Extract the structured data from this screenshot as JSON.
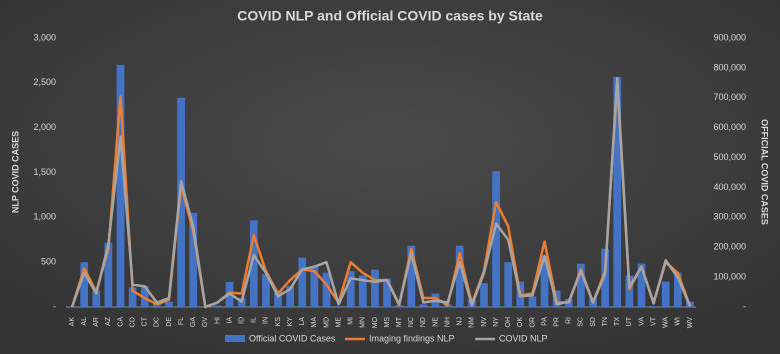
{
  "chart_data": {
    "type": "combo",
    "title": "COVID NLP and Official COVID cases by State",
    "y_label": "NLP COVID CASES",
    "y2_label": "OFFICIAL COVID CASES",
    "categories": [
      "AK",
      "AL",
      "AR",
      "AZ",
      "CA",
      "CO",
      "CT",
      "DC",
      "DE",
      "FL",
      "GA",
      "GV",
      "HI",
      "IA",
      "ID",
      "IL",
      "IN",
      "KS",
      "KY",
      "LA",
      "MA",
      "MD",
      "ME",
      "MI",
      "MN",
      "MO",
      "MS",
      "MT",
      "NC",
      "ND",
      "NE",
      "NH",
      "NJ",
      "NM",
      "NV",
      "NY",
      "OH",
      "OK",
      "OR",
      "PA",
      "PR",
      "RI",
      "SC",
      "SD",
      "TN",
      "TX",
      "UT",
      "VA",
      "VT",
      "WA",
      "WI",
      "WV"
    ],
    "series": [
      {
        "name": "Official COVID Cases",
        "type": "bar",
        "axis": "y2",
        "color": "#4472c4",
        "values": [
          2000,
          150000,
          55000,
          215000,
          810000,
          65000,
          70000,
          15000,
          18000,
          700000,
          315000,
          0,
          5000,
          84000,
          30000,
          290000,
          110000,
          55000,
          70000,
          165000,
          135000,
          115000,
          3000,
          120000,
          105000,
          125000,
          95000,
          6000,
          205000,
          9000,
          45000,
          9000,
          205000,
          24000,
          80000,
          455000,
          150000,
          85000,
          35000,
          170000,
          55000,
          27000,
          145000,
          30000,
          195000,
          770000,
          105000,
          145000,
          3000,
          85000,
          115000,
          18000
        ]
      },
      {
        "name": "Imaging findings NLP",
        "type": "line",
        "axis": "y",
        "color": "#ed7d31",
        "values": [
          0,
          430,
          170,
          650,
          2350,
          180,
          100,
          30,
          80,
          1350,
          850,
          0,
          50,
          160,
          150,
          800,
          400,
          150,
          300,
          420,
          400,
          250,
          50,
          500,
          380,
          300,
          300,
          20,
          650,
          100,
          100,
          20,
          600,
          40,
          400,
          1170,
          900,
          130,
          150,
          730,
          50,
          50,
          420,
          50,
          400,
          2500,
          200,
          450,
          50,
          500,
          380,
          10
        ]
      },
      {
        "name": "COVID NLP",
        "type": "line",
        "axis": "y",
        "color": "#a5a5a5",
        "values": [
          0,
          380,
          150,
          700,
          1900,
          250,
          230,
          50,
          100,
          1400,
          900,
          0,
          50,
          150,
          60,
          580,
          380,
          120,
          200,
          420,
          450,
          500,
          30,
          320,
          300,
          280,
          300,
          30,
          600,
          50,
          70,
          50,
          500,
          20,
          380,
          930,
          750,
          120,
          130,
          570,
          30,
          60,
          400,
          50,
          370,
          2550,
          220,
          450,
          40,
          520,
          330,
          10
        ]
      }
    ],
    "ylim": [
      0,
      3000
    ],
    "yticks": [
      {
        "value": 0,
        "label": "-"
      },
      500,
      {
        "value": 1000,
        "label": "1,000"
      },
      {
        "value": 1500,
        "label": "1,500"
      },
      {
        "value": 2000,
        "label": "2,000"
      },
      {
        "value": 2500,
        "label": "2,500"
      },
      {
        "value": 3000,
        "label": "3,000"
      }
    ],
    "y2lim": [
      0,
      900000
    ],
    "y2ticks": [
      {
        "value": 0,
        "label": "-"
      },
      {
        "value": 100000,
        "label": "100,000"
      },
      {
        "value": 200000,
        "label": "200,000"
      },
      {
        "value": 300000,
        "label": "300,000"
      },
      {
        "value": 400000,
        "label": "400,000"
      },
      {
        "value": 500000,
        "label": "500,000"
      },
      {
        "value": 600000,
        "label": "600,000"
      },
      {
        "value": 700000,
        "label": "700,000"
      },
      {
        "value": 800000,
        "label": "800,000"
      },
      {
        "value": 900000,
        "label": "900,000"
      }
    ],
    "grid": false,
    "legend": "bottom"
  }
}
